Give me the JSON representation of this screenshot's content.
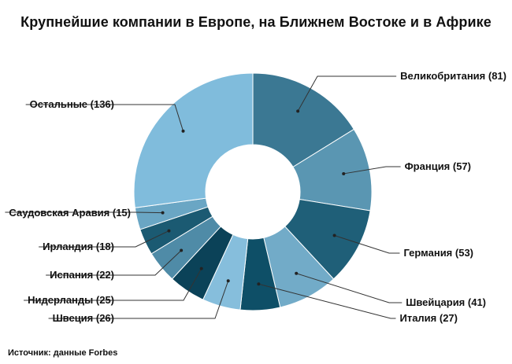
{
  "chart_data": {
    "type": "pie",
    "donut": true,
    "title": "Крупнейшие компании в Европе, на Ближнем Востоке и в Африке",
    "source": "Источник: данные Forbes",
    "slices": [
      {
        "name": "Великобритания",
        "value": 81,
        "label": "Великобритания (81)",
        "color": "#3b7893"
      },
      {
        "name": "Франция",
        "value": 57,
        "label": "Франция (57)",
        "color": "#5a96b2"
      },
      {
        "name": "Германия",
        "value": 53,
        "label": "Германия (53)",
        "color": "#1f5f78"
      },
      {
        "name": "Швейцария",
        "value": 41,
        "label": "Швейцария (41)",
        "color": "#72abc8"
      },
      {
        "name": "Италия",
        "value": 27,
        "label": "Италия (27)",
        "color": "#0e4f67"
      },
      {
        "name": "Швеция",
        "value": 26,
        "label": "Швеция (26)",
        "color": "#86bedc"
      },
      {
        "name": "Нидерланды",
        "value": 25,
        "label": "Нидерланды (25)",
        "color": "#0b4258"
      },
      {
        "name": "Испания",
        "value": 22,
        "label": "Испания (22)",
        "color": "#4f8ba7"
      },
      {
        "name": "Ирландия",
        "value": 18,
        "label": "Ирландия (18)",
        "color": "#1b5a72"
      },
      {
        "name": "Саудовская Аравия",
        "value": 15,
        "label": "Саудовская Аравия (15)",
        "color": "#6aa6c4"
      },
      {
        "name": "Остальные",
        "value": 136,
        "label": "Остальные (136)",
        "color": "#80bcdc"
      }
    ]
  }
}
